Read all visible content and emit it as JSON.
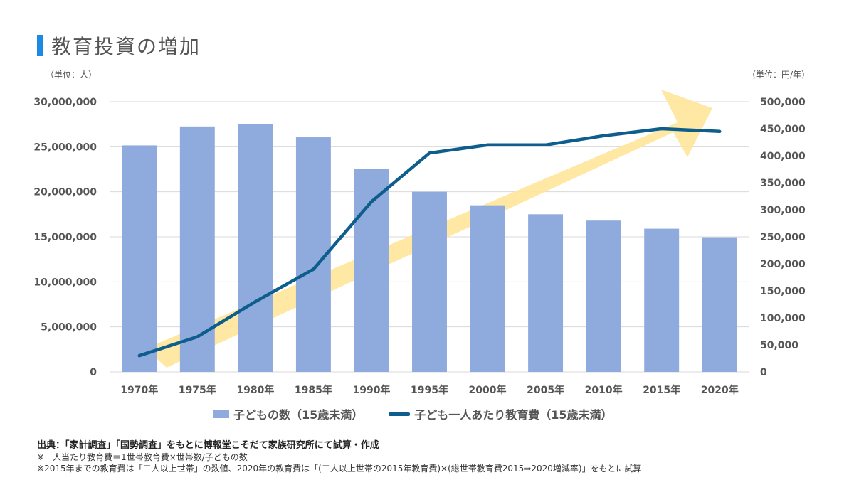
{
  "title": "教育投資の増加",
  "unit_left": "（単位：人）",
  "unit_right": "（単位：円/年）",
  "legend": {
    "bar": "子どもの数（15歳未満）",
    "line": "子ども一人あたり教育費（15歳未満）"
  },
  "notes": {
    "source": "出典：「家計調査」「国勢調査」をもとに博報堂こそだて家族研究所にて試算・作成",
    "note1": "※一人当たり教育費＝1世帯教育費×世帯数/子どもの数",
    "note2": "※2015年までの教育費は「二人以上世帯」の数値、2020年の教育費は「(二人以上世帯の2015年教育費)×(総世帯教育費2015⇒2020増減率)」をもとに試算"
  },
  "colors": {
    "bar": "#8faadc",
    "line": "#0d5e8c",
    "arrow": "#ffe699",
    "accent": "#1e88e5"
  },
  "chart_data": {
    "type": "bar",
    "categories": [
      "1970年",
      "1975年",
      "1980年",
      "1985年",
      "1990年",
      "1995年",
      "2000年",
      "2005年",
      "2010年",
      "2015年",
      "2020年"
    ],
    "series": [
      {
        "name": "子どもの数（15歳未満）",
        "type": "bar",
        "axis": "left",
        "values": [
          25150000,
          27250000,
          27500000,
          26050000,
          22500000,
          20000000,
          18500000,
          17500000,
          16800000,
          15900000,
          14950000
        ]
      },
      {
        "name": "子ども一人あたり教育費（15歳未満）",
        "type": "line",
        "axis": "right",
        "values": [
          30000,
          65000,
          130000,
          190000,
          315000,
          405000,
          420000,
          420000,
          437000,
          450000,
          445000
        ]
      }
    ],
    "y_left": {
      "min": 0,
      "max": 30000000,
      "ticks": [
        "0",
        "5,000,000",
        "10,000,000",
        "15,000,000",
        "20,000,000",
        "25,000,000",
        "30,000,000"
      ]
    },
    "y_right": {
      "min": 0,
      "max": 500000,
      "ticks": [
        "0",
        "50,000",
        "100,000",
        "150,000",
        "200,000",
        "250,000",
        "300,000",
        "350,000",
        "400,000",
        "450,000",
        "500,000"
      ]
    },
    "grid": true,
    "legend_position": "bottom"
  }
}
